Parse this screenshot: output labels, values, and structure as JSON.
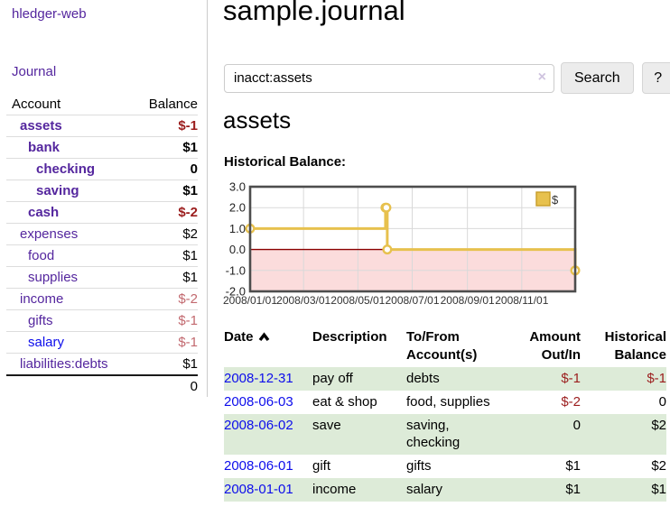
{
  "colors": {
    "link-purple": "#54269e",
    "link-blue": "#0d0deb",
    "neg-strong": "#9b1d1d",
    "neg-faded": "#c2696f",
    "stripe-green": "#ddebd8",
    "chart-gold": "#e7c14e",
    "chart-gold-dark": "#c79d2a",
    "chart-pink": "#fbdcdc",
    "chart-zero": "#8b0000",
    "chart-border": "#4d4d4d",
    "chart-grid": "#d9d9d9",
    "chart-text": "#333333"
  },
  "sidebar": {
    "app_title": "hledger-web",
    "journal_label": "Journal",
    "accounts": {
      "header_account": "Account",
      "header_balance": "Balance",
      "rows": [
        {
          "name": "assets",
          "balance": "$-1",
          "indent": 1,
          "bold": true,
          "balance_style": "neg-strong",
          "link_style": "purple"
        },
        {
          "name": "bank",
          "balance": "$1",
          "indent": 2,
          "bold": true,
          "balance_style": "normal",
          "link_style": "purple"
        },
        {
          "name": "checking",
          "balance": "0",
          "indent": 3,
          "bold": true,
          "balance_style": "normal",
          "link_style": "purple"
        },
        {
          "name": "saving",
          "balance": "$1",
          "indent": 3,
          "bold": true,
          "balance_style": "normal",
          "link_style": "purple"
        },
        {
          "name": "cash",
          "balance": "$-2",
          "indent": 2,
          "bold": true,
          "balance_style": "neg-strong",
          "link_style": "purple"
        },
        {
          "name": "expenses",
          "balance": "$2",
          "indent": 1,
          "bold": false,
          "balance_style": "normal",
          "link_style": "purple"
        },
        {
          "name": "food",
          "balance": "$1",
          "indent": 2,
          "bold": false,
          "balance_style": "normal",
          "link_style": "purple"
        },
        {
          "name": "supplies",
          "balance": "$1",
          "indent": 2,
          "bold": false,
          "balance_style": "normal",
          "link_style": "purple"
        },
        {
          "name": "income",
          "balance": "$-2",
          "indent": 1,
          "bold": false,
          "balance_style": "neg-faded",
          "link_style": "purple"
        },
        {
          "name": "gifts",
          "balance": "$-1",
          "indent": 2,
          "bold": false,
          "balance_style": "neg-faded",
          "link_style": "purple"
        },
        {
          "name": "salary",
          "balance": "$-1",
          "indent": 2,
          "bold": false,
          "balance_style": "neg-faded",
          "link_style": "blue"
        },
        {
          "name": "liabilities:debts",
          "balance": "$1",
          "indent": 1,
          "bold": false,
          "balance_style": "normal",
          "link_style": "purple"
        }
      ],
      "total": "0"
    }
  },
  "header": {
    "title": "sample.journal"
  },
  "search": {
    "value": "inacct:assets",
    "clear_icon": "×",
    "search_button": "Search",
    "help_button": "?"
  },
  "account_view": {
    "title": "assets",
    "chart_title": "Historical Balance:"
  },
  "chart_data": {
    "type": "line",
    "style": "step-after",
    "title": "Historical Balance",
    "legend": "$",
    "legend_position": "top-right",
    "ylim": [
      -2.0,
      3.0
    ],
    "y_ticks": [
      "3.0",
      "2.0",
      "1.0",
      "0.0",
      "-1.0",
      "-2.0"
    ],
    "x_domain": [
      "2008-01-01",
      "2008-12-31"
    ],
    "x_ticks": [
      "2008/01/01",
      "2008/03/01",
      "2008/05/01",
      "2008/07/01",
      "2008/09/01",
      "2008/11/01"
    ],
    "negative_region_shaded": true,
    "series": [
      {
        "name": "$",
        "points": [
          {
            "date": "2008-01-01",
            "value": 1
          },
          {
            "date": "2008-06-01",
            "value": 2
          },
          {
            "date": "2008-06-02",
            "value": 2
          },
          {
            "date": "2008-06-03",
            "value": 0
          },
          {
            "date": "2008-12-31",
            "value": -1
          }
        ]
      }
    ]
  },
  "register": {
    "headers": {
      "date": "Date",
      "description": "Description",
      "accounts": "To/From Account(s)",
      "amount": "Amount Out/In",
      "balance": "Historical Balance"
    },
    "sort_icon": "chevron-up",
    "rows": [
      {
        "date": "2008-12-31",
        "description": "pay off",
        "accounts": "debts",
        "amount": "$-1",
        "balance": "$-1",
        "amount_neg": true,
        "balance_neg": true
      },
      {
        "date": "2008-06-03",
        "description": "eat & shop",
        "accounts": "food, supplies",
        "amount": "$-2",
        "balance": "0",
        "amount_neg": true,
        "balance_neg": false
      },
      {
        "date": "2008-06-02",
        "description": "save",
        "accounts": "saving, checking",
        "amount": "0",
        "balance": "$2",
        "amount_neg": false,
        "balance_neg": false
      },
      {
        "date": "2008-06-01",
        "description": "gift",
        "accounts": "gifts",
        "amount": "$1",
        "balance": "$2",
        "amount_neg": false,
        "balance_neg": false
      },
      {
        "date": "2008-01-01",
        "description": "income",
        "accounts": "salary",
        "amount": "$1",
        "balance": "$1",
        "amount_neg": false,
        "balance_neg": false
      }
    ]
  }
}
